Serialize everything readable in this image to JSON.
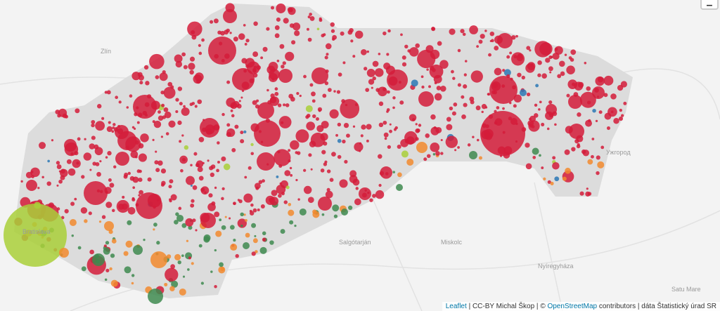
{
  "zoom_control": {
    "zoom_out": "–"
  },
  "place_labels": [
    "Zlín",
    "Bratislava",
    "Salgótarján",
    "Miskolc",
    "Nyíregyháza",
    "Satu Mare",
    "Ужгород"
  ],
  "attribution": {
    "leaflet": "Leaflet",
    "separator": "|",
    "author": "CC-BY Michal Škop",
    "copyright": "©",
    "osm": "OpenStreetMap",
    "contributors": "contributors",
    "source": "dáta Štatistický úrad SR"
  }
}
